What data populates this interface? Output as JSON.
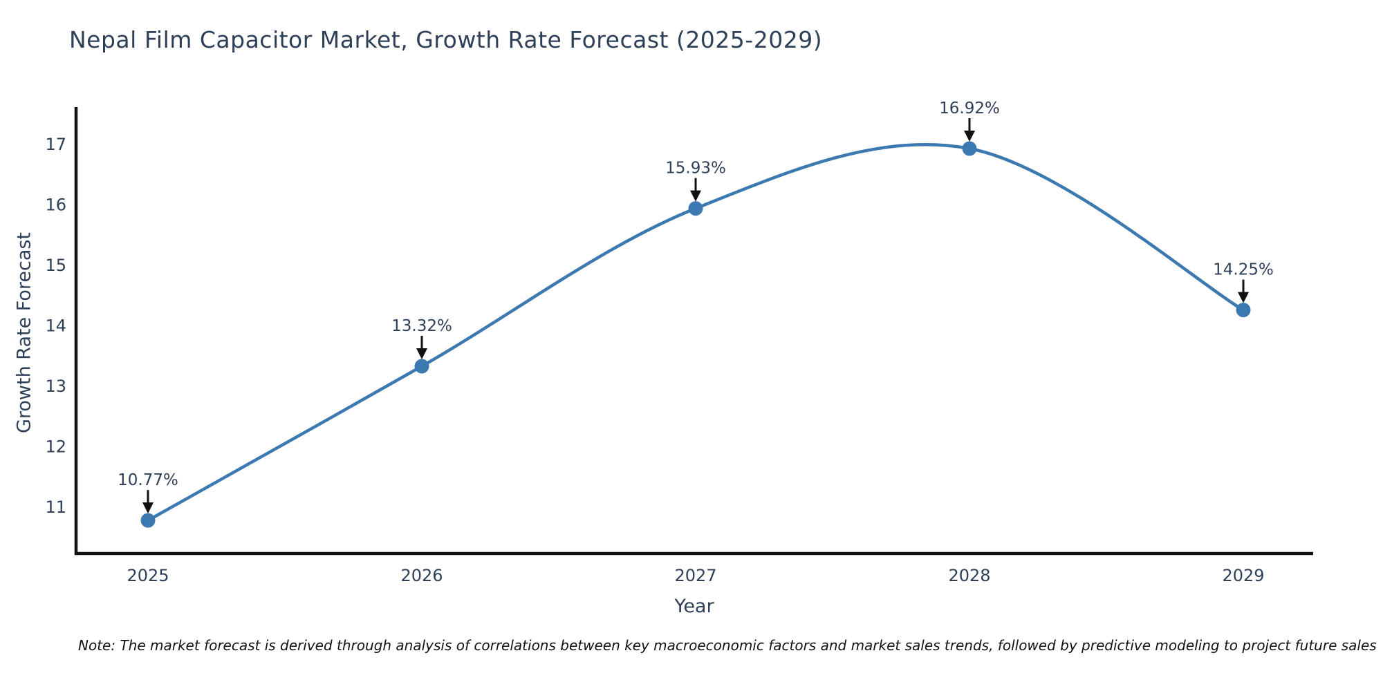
{
  "title": "Nepal Film Capacitor Market, Growth Rate Forecast (2025-2029)",
  "footnote": "Note: The market forecast is derived through analysis of correlations between key macroeconomic factors and market sales trends, followed by predictive modeling to project future sales",
  "chart_data": {
    "type": "line",
    "title": "Nepal Film Capacitor Market, Growth Rate Forecast (2025-2029)",
    "xlabel": "Year",
    "ylabel": "Growth Rate Forecast",
    "x": [
      2025,
      2026,
      2027,
      2028,
      2029
    ],
    "series": [
      {
        "name": "Growth Rate Forecast",
        "values": [
          10.77,
          13.32,
          15.93,
          16.92,
          14.25
        ]
      }
    ],
    "point_labels": [
      "10.77%",
      "13.32%",
      "15.93%",
      "16.92%",
      "14.25%"
    ],
    "y_ticks": [
      11,
      12,
      13,
      14,
      15,
      16,
      17
    ],
    "ylim": [
      10.22,
      17.6
    ],
    "line_shape": "spline",
    "grid": false,
    "legend": "none",
    "colors": {
      "line": "#3c79b0",
      "marker": "#3c79b0",
      "axis": "#111111",
      "tick_text": "#2e4058",
      "label_text": "#2e4058",
      "arrow": "#111111",
      "title_text": "#2e4058",
      "note_text": "#111111",
      "background": "#ffffff"
    }
  }
}
